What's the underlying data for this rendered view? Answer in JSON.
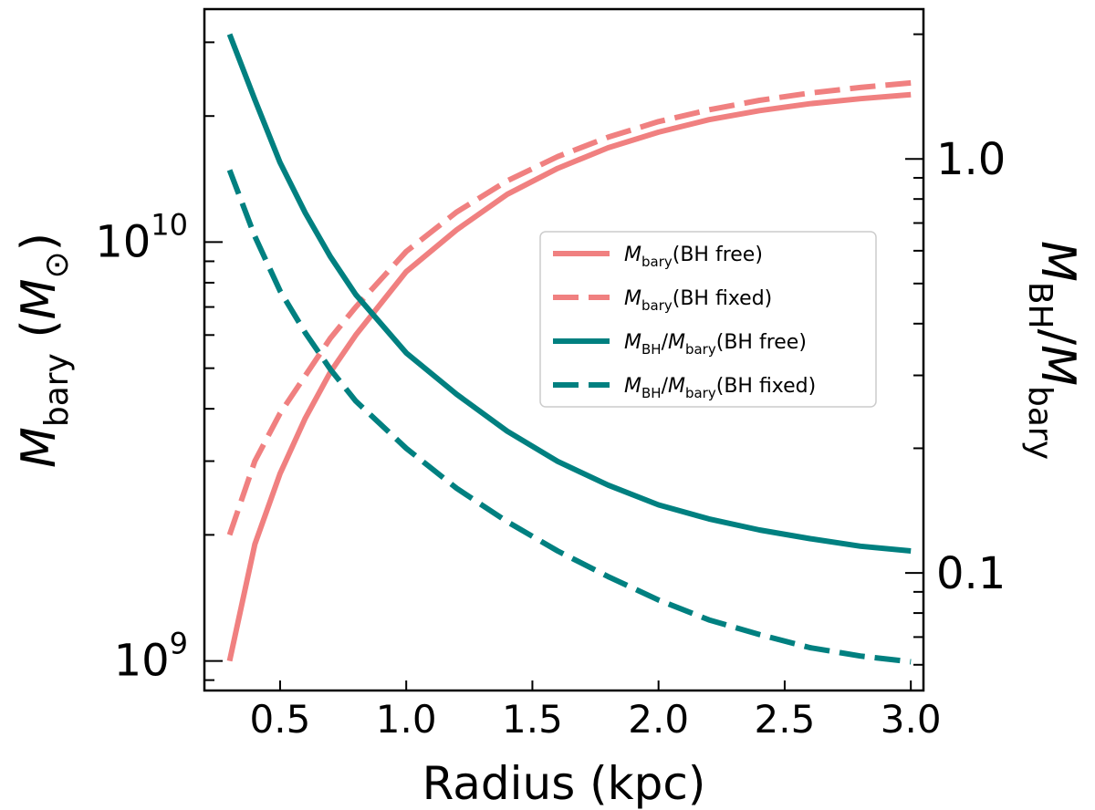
{
  "chart_data": {
    "type": "line",
    "xlabel": "Radius (kpc)",
    "ylabel": "M_bary (M_⊙)",
    "y2label": "M_BH/M_bary",
    "x_range": [
      0.2,
      3.05
    ],
    "ylim": [
      850000000,
      36000000000
    ],
    "y_scale": "log",
    "y2lim": [
      0.052,
      2.3
    ],
    "y2_scale": "log",
    "x_ticks": [
      0.5,
      1.0,
      1.5,
      2.0,
      2.5,
      3.0
    ],
    "x_tick_labels": [
      "0.5",
      "1.0",
      "1.5",
      "2.0",
      "2.5",
      "3.0"
    ],
    "y_major_ticks": [
      1000000000,
      10000000000
    ],
    "y_tick_labels": [
      {
        "base": "10",
        "exp": "9"
      },
      {
        "base": "10",
        "exp": "10"
      }
    ],
    "y2_major_ticks": [
      0.1,
      1.0
    ],
    "y2_tick_labels": [
      "0.1",
      "1.0"
    ],
    "grid": false,
    "legend_position": "center-right",
    "colors": {
      "salmon": "#f08080",
      "teal": "#008080"
    },
    "series": [
      {
        "name": "M_bary(BH free)",
        "legend_main": "M",
        "legend_sub": "bary",
        "legend_suffix": "(BH free)",
        "axis": "left",
        "color": "#f08080",
        "dash": "solid",
        "x": [
          0.3,
          0.4,
          0.5,
          0.6,
          0.7,
          0.8,
          1.0,
          1.2,
          1.4,
          1.6,
          1.8,
          2.0,
          2.2,
          2.4,
          2.6,
          2.8,
          3.0
        ],
        "y": [
          1000000000.0,
          1900000000.0,
          2800000000.0,
          3800000000.0,
          4900000000.0,
          6000000000.0,
          8500000000.0,
          10700000000.0,
          13000000000.0,
          15000000000.0,
          16800000000.0,
          18300000000.0,
          19600000000.0,
          20600000000.0,
          21400000000.0,
          22000000000.0,
          22500000000.0
        ]
      },
      {
        "name": "M_bary(BH fixed)",
        "legend_main": "M",
        "legend_sub": "bary",
        "legend_suffix": "(BH fixed)",
        "axis": "left",
        "color": "#f08080",
        "dash": "dashed",
        "x": [
          0.3,
          0.4,
          0.5,
          0.6,
          0.7,
          0.8,
          1.0,
          1.2,
          1.4,
          1.6,
          1.8,
          2.0,
          2.2,
          2.4,
          2.6,
          2.8,
          3.0
        ],
        "y": [
          2000000000.0,
          3000000000.0,
          3900000000.0,
          4800000000.0,
          5900000000.0,
          7000000000.0,
          9500000000.0,
          11800000000.0,
          14000000000.0,
          16000000000.0,
          17800000000.0,
          19400000000.0,
          20700000000.0,
          21800000000.0,
          22700000000.0,
          23400000000.0,
          24000000000.0
        ]
      },
      {
        "name": "M_BH/M_bary(BH free)",
        "legend_main": "M",
        "legend_sub": "BH",
        "legend_main2": "/M",
        "legend_sub2": "bary",
        "legend_suffix": "(BH free)",
        "axis": "right",
        "color": "#008080",
        "dash": "solid",
        "x": [
          0.3,
          0.4,
          0.5,
          0.6,
          0.7,
          0.8,
          1.0,
          1.2,
          1.4,
          1.6,
          1.8,
          2.0,
          2.2,
          2.4,
          2.6,
          2.8,
          3.0
        ],
        "y": [
          2.0,
          1.39,
          0.98,
          0.74,
          0.58,
          0.47,
          0.34,
          0.27,
          0.22,
          0.186,
          0.163,
          0.146,
          0.135,
          0.127,
          0.121,
          0.116,
          0.113
        ]
      },
      {
        "name": "M_BH/M_bary(BH fixed)",
        "legend_main": "M",
        "legend_sub": "BH",
        "legend_main2": "/M",
        "legend_sub2": "bary",
        "legend_suffix": "(BH fixed)",
        "axis": "right",
        "color": "#008080",
        "dash": "dashed",
        "x": [
          0.3,
          0.4,
          0.5,
          0.6,
          0.7,
          0.8,
          1.0,
          1.2,
          1.4,
          1.6,
          1.8,
          2.0,
          2.2,
          2.4,
          2.6,
          2.8,
          3.0
        ],
        "y": [
          0.94,
          0.65,
          0.48,
          0.38,
          0.31,
          0.26,
          0.2,
          0.16,
          0.133,
          0.113,
          0.098,
          0.086,
          0.077,
          0.071,
          0.066,
          0.063,
          0.061
        ]
      }
    ]
  }
}
